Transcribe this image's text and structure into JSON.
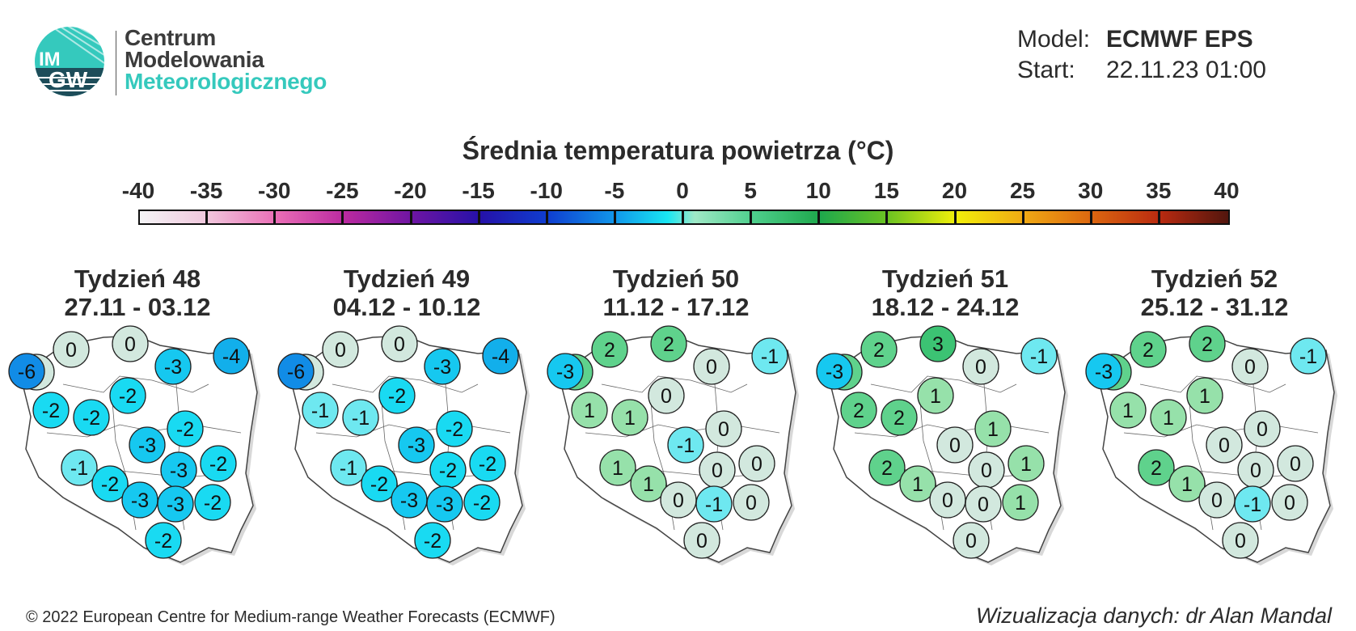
{
  "logo": {
    "badge_text": "IMGW",
    "line1": "Centrum",
    "line2": "Modelowania",
    "line3": "Meteorologicznego",
    "colors": {
      "teal": "#35c9bd",
      "badge_dark": "#1d4d5a"
    }
  },
  "model_info": {
    "model_label": "Model:",
    "model_value": "ECMWF EPS",
    "start_label": "Start:",
    "start_value": "22.11.23 01:00"
  },
  "legend": {
    "title": "Średnia temperatura powietrza (°C)",
    "ticks": [
      "-40",
      "-35",
      "-30",
      "-25",
      "-20",
      "-15",
      "-10",
      "-5",
      "0",
      "5",
      "10",
      "15",
      "20",
      "25",
      "30",
      "35",
      "40"
    ],
    "range": [
      -40,
      40
    ]
  },
  "weeks": [
    {
      "title": "Tydzień 48",
      "dates": "27.11 - 03.12",
      "values": [
        "0",
        "0",
        "0",
        "-3",
        "-4",
        "-2",
        "-2",
        "-2",
        "-3",
        "-2",
        "-3",
        "-2",
        "-1",
        "-2",
        "-3",
        "-3",
        "-2",
        "-2",
        "-6"
      ]
    },
    {
      "title": "Tydzień 49",
      "dates": "04.12 - 10.12",
      "values": [
        "0",
        "0",
        "0",
        "-3",
        "-4",
        "-1",
        "-1",
        "-2",
        "-3",
        "-2",
        "-2",
        "-2",
        "-1",
        "-2",
        "-3",
        "-3",
        "-2",
        "-2",
        "-6"
      ]
    },
    {
      "title": "Tydzień 50",
      "dates": "11.12 - 17.12",
      "values": [
        "2",
        "2",
        "2",
        "0",
        "-1",
        "1",
        "1",
        "0",
        "-1",
        "0",
        "0",
        "0",
        "1",
        "1",
        "0",
        "-1",
        "0",
        "0",
        "-3"
      ]
    },
    {
      "title": "Tydzień 51",
      "dates": "18.12 - 24.12",
      "values": [
        "2",
        "2",
        "3",
        "0",
        "-1",
        "2",
        "2",
        "1",
        "0",
        "1",
        "0",
        "1",
        "2",
        "1",
        "0",
        "0",
        "1",
        "0",
        "-3"
      ]
    },
    {
      "title": "Tydzień 52",
      "dates": "25.12 - 31.12",
      "values": [
        "2",
        "2",
        "2",
        "0",
        "-1",
        "1",
        "1",
        "1",
        "0",
        "0",
        "0",
        "0",
        "2",
        "1",
        "0",
        "-1",
        "0",
        "0",
        "-3"
      ]
    }
  ],
  "footer": {
    "copyright": "© 2022 European Centre for Medium-range Weather Forecasts (ECMWF)",
    "credit": "Wizualizacja danych: dr Alan Mandal"
  }
}
